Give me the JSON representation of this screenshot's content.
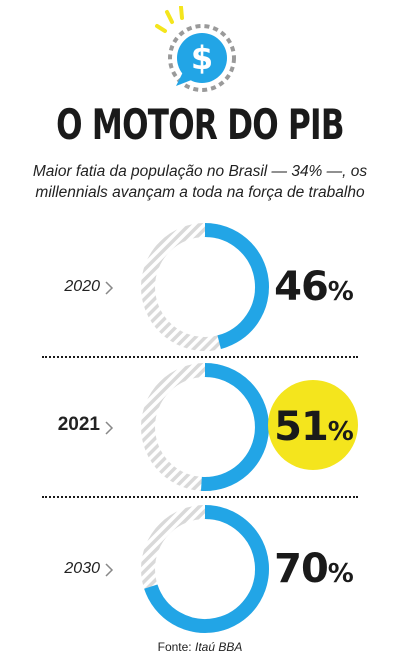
{
  "header": {
    "title": "O MOTOR DO PIB",
    "subtitle_line1": "Maior fatia da população no Brasil — 34% —, os",
    "subtitle_line2": "millennials avançam a toda na força de trabalho",
    "icon": "dollar-chat-bubble-icon"
  },
  "source": {
    "label": "Fonte:",
    "name": "Itaú BBA"
  },
  "colors": {
    "accent": "#22a5e6",
    "highlight": "#f4e51d",
    "track": "#d9d9d9",
    "icon_yellow": "#f4e51d",
    "icon_gray": "#9a9a9a"
  },
  "chart_data": {
    "type": "donut",
    "categories": [
      "2020",
      "2021",
      "2030"
    ],
    "values": [
      46,
      51,
      70
    ],
    "value_labels": [
      "46",
      "51",
      "70"
    ],
    "unit": "%",
    "highlighted_category": "2021"
  }
}
